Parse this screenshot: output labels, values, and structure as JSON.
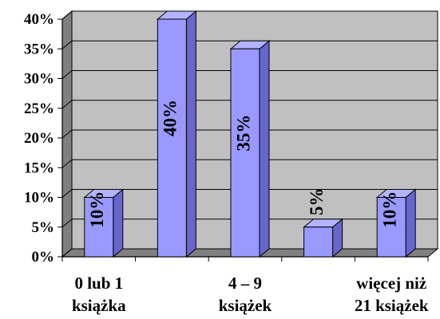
{
  "chart_data": {
    "type": "bar",
    "categories": [
      [
        "0 lub 1",
        "książka"
      ],
      [
        "",
        ""
      ],
      [
        "4 – 9",
        "książek"
      ],
      [
        "",
        ""
      ],
      [
        "więcej niż",
        "21 książek"
      ]
    ],
    "values": [
      10,
      40,
      35,
      5,
      10
    ],
    "data_labels": [
      "10%",
      "40%",
      "35%",
      "5%",
      "10%"
    ],
    "y_ticks": [
      "0%",
      "5%",
      "10%",
      "15%",
      "20%",
      "25%",
      "30%",
      "35%",
      "40%"
    ],
    "ylim": [
      0,
      40
    ],
    "grid": true,
    "title": "",
    "xlabel": "",
    "ylabel": "",
    "colors": {
      "bar_front": "#9999ff",
      "bar_side": "#6666cc",
      "bar_top": "#b3b3ff",
      "wall": "#c0c0c0",
      "wall_side": "#808080",
      "floor": "#808080"
    }
  }
}
